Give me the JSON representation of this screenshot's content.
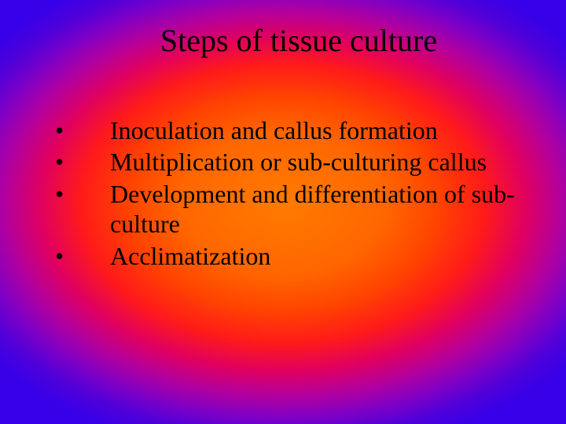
{
  "slide": {
    "title": "Steps of tissue culture",
    "bullets": [
      {
        "marker": "•",
        "text": "Inoculation and callus formation"
      },
      {
        "marker": "•",
        "text": "Multiplication or sub-culturing callus"
      },
      {
        "marker": "•",
        "text": "Development and differentiation of sub-culture"
      },
      {
        "marker": "•",
        "text": "Acclimatization"
      }
    ],
    "colors": {
      "text": "#000000",
      "gradient_center": "#ff7b00",
      "gradient_mid": "#ff1a1a",
      "gradient_outer": "#3800e8"
    },
    "typography": {
      "title_fontsize": 40,
      "body_fontsize": 32,
      "font_family": "Times New Roman"
    }
  }
}
